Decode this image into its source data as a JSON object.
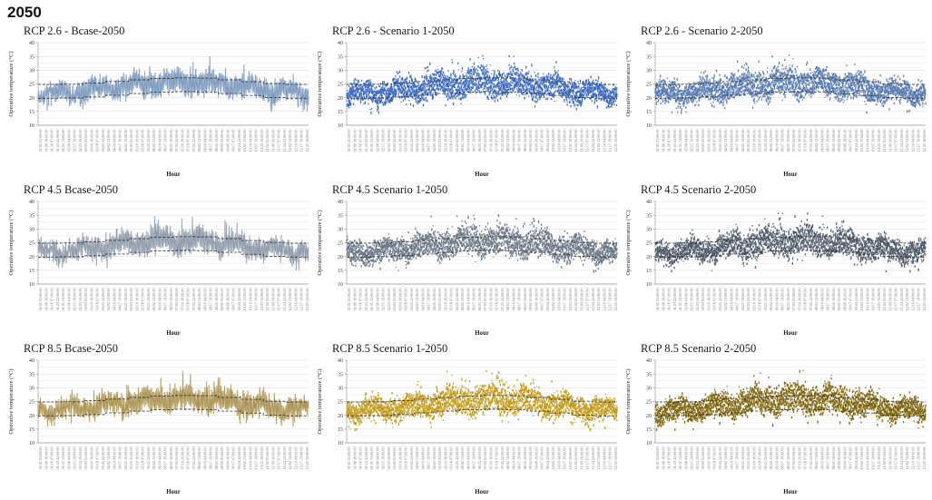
{
  "page": {
    "title": "2050",
    "background": "#ffffff"
  },
  "shared_axes": {
    "ylabel": "Operative temperature (°C)",
    "xlabel": "Hour",
    "ylim": [
      10,
      40
    ],
    "yticks": [
      10,
      15,
      20,
      25,
      30,
      35,
      40
    ],
    "grid_step": 2.5,
    "grid_color": "#e4e4e4",
    "axis_color": "#9a9a9a",
    "comfort_line_color": "#2b2b2b",
    "comfort_upper_monthly": [
      24.8,
      24.9,
      25.3,
      25.9,
      26.5,
      27.0,
      27.2,
      27.1,
      26.5,
      25.8,
      25.1,
      24.8
    ],
    "comfort_lower_monthly": [
      19.8,
      19.9,
      20.3,
      20.9,
      21.5,
      22.0,
      22.2,
      22.1,
      21.5,
      20.8,
      20.1,
      19.8
    ],
    "x_tick_labels": [
      "01/01 01:00:00",
      "01/08 16:00:00",
      "01/16 07:00:00",
      "01/23 22:00:00",
      "01/31 13:00:00",
      "02/08 04:00:00",
      "02/15 19:00:00",
      "02/23 10:00:00",
      "03/03 01:00:00",
      "03/10 16:00:00",
      "03/18 07:00:00",
      "03/25 22:00:00",
      "04/02 13:00:00",
      "04/10 04:00:00",
      "04/17 19:00:00",
      "04/25 10:00:00",
      "05/03 01:00:00",
      "05/10 16:00:00",
      "05/18 07:00:00",
      "05/25 22:00:00",
      "06/02 13:00:00",
      "06/10 04:00:00",
      "06/17 19:00:00",
      "06/25 10:00:00",
      "07/03 01:00:00",
      "07/10 16:00:00",
      "07/18 07:00:00",
      "07/25 22:00:00",
      "08/02 13:00:00",
      "08/10 04:00:00",
      "08/17 19:00:00",
      "08/25 10:00:00",
      "09/02 01:00:00",
      "09/09 16:00:00",
      "09/17 07:00:00",
      "09/24 22:00:00",
      "10/02 13:00:00",
      "10/10 04:00:00",
      "10/17 19:00:00",
      "10/25 10:00:00",
      "11/02 01:00:00",
      "11/09 16:00:00",
      "11/17 07:00:00",
      "11/24 22:00:00",
      "12/02 13:00:00",
      "12/10 04:00:00",
      "12/17 19:00:00",
      "12/25 10:00:00"
    ]
  },
  "chart_data": [
    {
      "type": "line",
      "title": "RCP 2.6 - Bcase-2050",
      "rcp": "RCP 2.6",
      "scenario": "Bcase",
      "color": "#7d99bd",
      "halo": "#c5d2e4",
      "seed": 11,
      "approx_min_c": 14.8,
      "approx_max_c": 35.8,
      "winter_mean_c": 21.8,
      "summer_mean_c": 25.8
    },
    {
      "type": "scatter",
      "title": "RCP 2.6 - Scenario 1-2050",
      "rcp": "RCP 2.6",
      "scenario": "Scenario 1",
      "color": "#3a68c0",
      "halo": "#84a4dc",
      "seed": 18,
      "approx_min_c": 15.0,
      "approx_max_c": 35.5,
      "winter_mean_c": 21.9,
      "summer_mean_c": 25.9
    },
    {
      "type": "scatter",
      "title": "RCP 2.6 - Scenario 2-2050",
      "rcp": "RCP 2.6",
      "scenario": "Scenario 2",
      "color": "#5579b0",
      "halo": "#93aacd",
      "seed": 25,
      "approx_min_c": 15.0,
      "approx_max_c": 35.6,
      "winter_mean_c": 21.9,
      "summer_mean_c": 25.8
    },
    {
      "type": "line",
      "title": "RCP 4.5 Bcase-2050",
      "rcp": "RCP 4.5",
      "scenario": "Bcase",
      "color": "#8e9aa9",
      "halo": "#cdd4db",
      "seed": 32,
      "approx_min_c": 14.9,
      "approx_max_c": 36.2,
      "winter_mean_c": 21.9,
      "summer_mean_c": 26.0
    },
    {
      "type": "scatter",
      "title": "RCP 4.5 Scenario 1-2050",
      "rcp": "RCP 4.5",
      "scenario": "Scenario 1",
      "color": "#6b7886",
      "halo": "#a2acb7",
      "seed": 39,
      "approx_min_c": 15.1,
      "approx_max_c": 35.8,
      "winter_mean_c": 22.0,
      "summer_mean_c": 26.0
    },
    {
      "type": "scatter",
      "title": "RCP 4.5 Scenario 2-2050",
      "rcp": "RCP 4.5",
      "scenario": "Scenario 2",
      "color": "#4e5a68",
      "halo": "#8a96a3",
      "seed": 46,
      "approx_min_c": 15.0,
      "approx_max_c": 35.9,
      "winter_mean_c": 22.0,
      "summer_mean_c": 26.0
    },
    {
      "type": "line",
      "title": "RCP 8.5 Bcase-2050",
      "rcp": "RCP 8.5",
      "scenario": "Bcase",
      "color": "#ab9455",
      "halo": "#dbd0a8",
      "seed": 53,
      "approx_min_c": 15.0,
      "approx_max_c": 36.0,
      "winter_mean_c": 22.0,
      "summer_mean_c": 26.2
    },
    {
      "type": "scatter",
      "title": "RCP 8.5 Scenario 1-2050",
      "rcp": "RCP 8.5",
      "scenario": "Scenario 1",
      "color": "#c29b1b",
      "halo": "#e0c370",
      "seed": 60,
      "approx_min_c": 15.2,
      "approx_max_c": 36.4,
      "winter_mean_c": 22.1,
      "summer_mean_c": 26.3
    },
    {
      "type": "scatter",
      "title": "RCP 8.5 Scenario 2-2050",
      "rcp": "RCP 8.5",
      "scenario": "Scenario 2",
      "color": "#7d650f",
      "halo": "#ab9240",
      "seed": 67,
      "approx_min_c": 15.2,
      "approx_max_c": 36.5,
      "winter_mean_c": 22.1,
      "summer_mean_c": 26.3
    }
  ]
}
